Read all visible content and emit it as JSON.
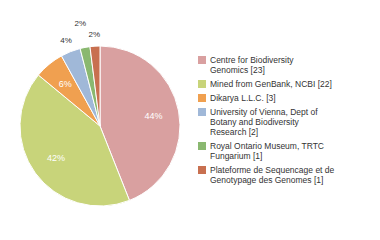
{
  "chart_data": {
    "type": "pie",
    "categories": [
      "Centre for Biodiversity\nGenomics [23]",
      "Mined from GenBank, NCBI [22]",
      "Dikarya L.L.C. [3]",
      "University of Vienna, Dept of\nBotany and Biodiversity\nResearch [2]",
      "Royal Ontario Museum, TRTC\nFungarium [1]",
      "Plateforme de Sequencage et de\nGenotypage des Genomes [1]"
    ],
    "values": [
      44,
      42,
      6,
      4,
      2,
      2
    ],
    "value_labels": [
      "44%",
      "42%",
      "6%",
      "4%",
      "2%",
      "2%"
    ],
    "colors": [
      "#d9a0a0",
      "#c8d47a",
      "#f0a050",
      "#a0b8d8",
      "#8ab870",
      "#c87050"
    ],
    "data_labels": true,
    "legend": "right"
  }
}
